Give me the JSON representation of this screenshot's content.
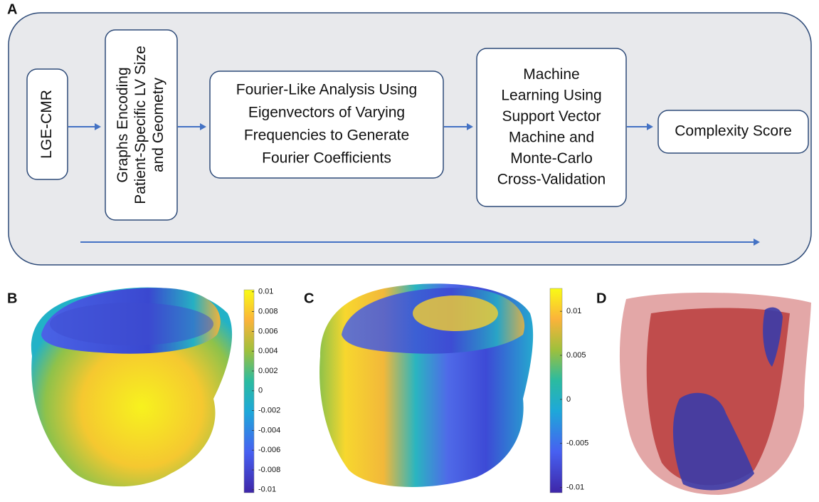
{
  "panels": {
    "a": {
      "label": "A",
      "steps": [
        {
          "lines": [
            "LGE-CMR"
          ]
        },
        {
          "lines": [
            "Graphs Encoding",
            "Patient-Specific LV Size",
            "and Geometry"
          ]
        },
        {
          "lines": [
            "Fourier-Like Analysis Using",
            "Eigenvectors of Varying",
            "Frequencies to Generate",
            "Fourier Coefficients"
          ]
        },
        {
          "lines": [
            "Machine",
            "Learning Using",
            "Support Vector",
            "Machine and",
            "Monte-Carlo",
            "Cross-Validation"
          ]
        },
        {
          "lines": [
            "Complexity Score"
          ]
        }
      ]
    },
    "b": {
      "label": "B",
      "colorbar": {
        "lim": [
          -0.0103,
          0.0102
        ],
        "ticks": [
          0.01,
          0.008,
          0.006,
          0.004,
          0.002,
          0,
          -0.002,
          -0.004,
          -0.006,
          -0.008,
          -0.01
        ]
      }
    },
    "c": {
      "label": "C",
      "colorbar": {
        "lim": [
          -0.0106,
          0.0126
        ],
        "ticks": [
          0.01,
          0.005,
          0,
          -0.005,
          -0.01
        ]
      }
    },
    "d": {
      "label": "D"
    }
  }
}
